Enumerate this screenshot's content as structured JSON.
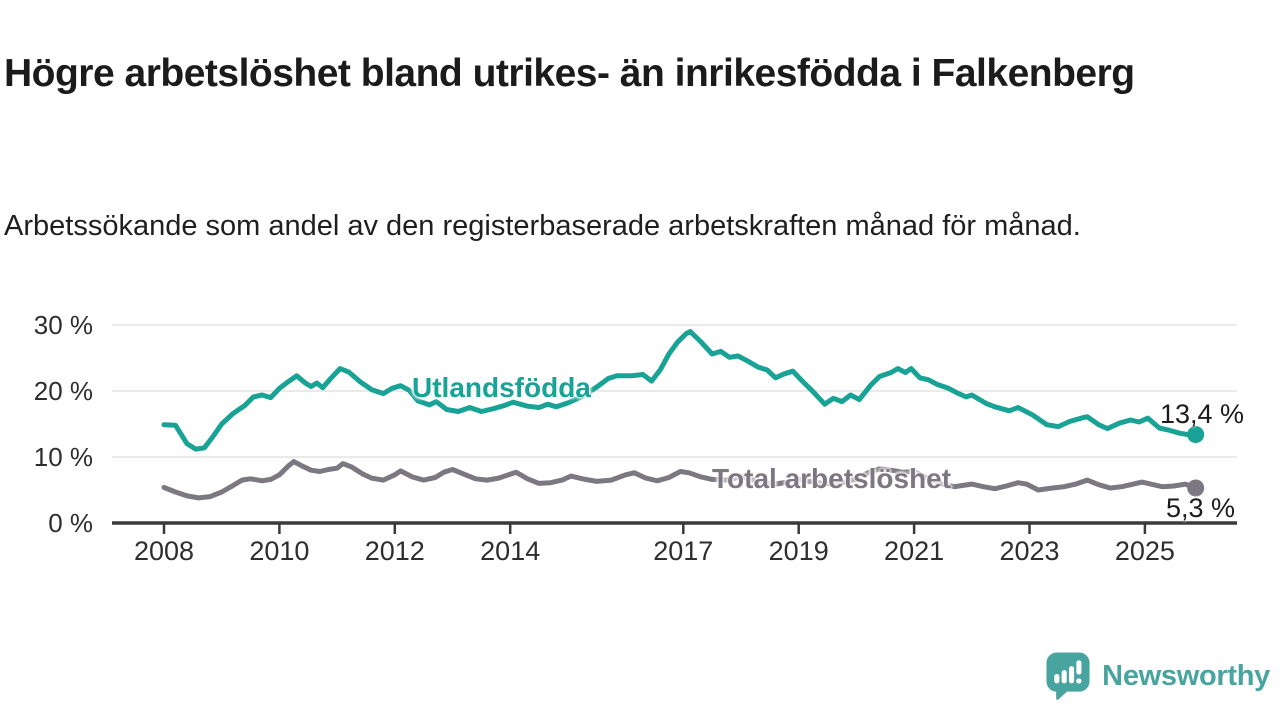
{
  "title": "Högre arbetslöshet bland utrikes- än inrikesfödda i Falkenberg",
  "subtitle": "Arbetssökande som andel av den registerbaserade arbetskraften månad för månad.",
  "branding": {
    "name": "Newsworthy",
    "logo_icon": "speech-bubble-bar-chart-icon"
  },
  "colors": {
    "foreign_series": "#18A396",
    "total_series": "#7B7882",
    "brand_teal": "#47A49E",
    "grid": "#E3E3E3",
    "axis": "#3A3A3A",
    "tick_text": "#2E2E2E",
    "value_text": "#1C1C1C"
  },
  "chart_data": {
    "type": "line",
    "title": "Högre arbetslöshet bland utrikes- än inrikesfödda i Falkenberg",
    "subtitle": "Arbetssökande som andel av den registerbaserade arbetskraften månad för månad.",
    "unit": "%",
    "grid": true,
    "legend_position": "inline-labels-on-lines",
    "x_axis": {
      "ticks": [
        2008,
        2010,
        2012,
        2014,
        2017,
        2019,
        2021,
        2023,
        2025
      ],
      "tick_labels": [
        "2008",
        "2010",
        "2012",
        "2014",
        "2017",
        "2019",
        "2021",
        "2023",
        "2025"
      ],
      "range": [
        2007.1,
        2026.6
      ]
    },
    "y_axis": {
      "ticks": [
        0,
        10,
        20,
        30
      ],
      "tick_labels": [
        "0 %",
        "10 %",
        "20 %",
        "30 %"
      ],
      "range": [
        0,
        32
      ]
    },
    "series": [
      {
        "name": "Utlandsfödda",
        "color": "#18A396",
        "end_label": "13,4 %",
        "end_value": 13.4,
        "points": [
          [
            2008.0,
            14.9
          ],
          [
            2008.2,
            14.8
          ],
          [
            2008.4,
            12.0
          ],
          [
            2008.55,
            11.2
          ],
          [
            2008.7,
            11.4
          ],
          [
            2008.85,
            13.1
          ],
          [
            2009.0,
            15.0
          ],
          [
            2009.2,
            16.6
          ],
          [
            2009.4,
            17.8
          ],
          [
            2009.55,
            19.1
          ],
          [
            2009.7,
            19.4
          ],
          [
            2009.85,
            19.0
          ],
          [
            2010.0,
            20.4
          ],
          [
            2010.15,
            21.4
          ],
          [
            2010.3,
            22.3
          ],
          [
            2010.45,
            21.2
          ],
          [
            2010.55,
            20.7
          ],
          [
            2010.65,
            21.2
          ],
          [
            2010.75,
            20.5
          ],
          [
            2010.9,
            22.0
          ],
          [
            2011.05,
            23.4
          ],
          [
            2011.2,
            22.9
          ],
          [
            2011.4,
            21.4
          ],
          [
            2011.6,
            20.2
          ],
          [
            2011.8,
            19.6
          ],
          [
            2011.95,
            20.4
          ],
          [
            2012.1,
            20.8
          ],
          [
            2012.25,
            20.1
          ],
          [
            2012.4,
            18.5
          ],
          [
            2012.6,
            17.9
          ],
          [
            2012.72,
            18.4
          ],
          [
            2012.9,
            17.2
          ],
          [
            2013.1,
            16.9
          ],
          [
            2013.3,
            17.5
          ],
          [
            2013.5,
            16.9
          ],
          [
            2013.7,
            17.3
          ],
          [
            2013.9,
            17.8
          ],
          [
            2014.05,
            18.3
          ],
          [
            2014.3,
            17.7
          ],
          [
            2014.5,
            17.5
          ],
          [
            2014.65,
            18.0
          ],
          [
            2014.8,
            17.6
          ],
          [
            2015.0,
            18.2
          ],
          [
            2015.25,
            19.2
          ],
          [
            2015.5,
            20.6
          ],
          [
            2015.7,
            21.9
          ],
          [
            2015.85,
            22.3
          ],
          [
            2016.1,
            22.3
          ],
          [
            2016.3,
            22.5
          ],
          [
            2016.45,
            21.5
          ],
          [
            2016.6,
            23.2
          ],
          [
            2016.75,
            25.6
          ],
          [
            2016.9,
            27.4
          ],
          [
            2017.05,
            28.7
          ],
          [
            2017.12,
            29.0
          ],
          [
            2017.3,
            27.5
          ],
          [
            2017.5,
            25.6
          ],
          [
            2017.65,
            26.0
          ],
          [
            2017.8,
            25.1
          ],
          [
            2017.95,
            25.3
          ],
          [
            2018.1,
            24.6
          ],
          [
            2018.3,
            23.6
          ],
          [
            2018.45,
            23.2
          ],
          [
            2018.6,
            22.0
          ],
          [
            2018.75,
            22.6
          ],
          [
            2018.9,
            23.0
          ],
          [
            2019.05,
            21.6
          ],
          [
            2019.25,
            19.9
          ],
          [
            2019.45,
            18.0
          ],
          [
            2019.6,
            18.9
          ],
          [
            2019.75,
            18.4
          ],
          [
            2019.9,
            19.4
          ],
          [
            2020.05,
            18.7
          ],
          [
            2020.25,
            20.9
          ],
          [
            2020.4,
            22.2
          ],
          [
            2020.6,
            22.8
          ],
          [
            2020.72,
            23.4
          ],
          [
            2020.85,
            22.8
          ],
          [
            2020.95,
            23.4
          ],
          [
            2021.1,
            22.0
          ],
          [
            2021.25,
            21.7
          ],
          [
            2021.4,
            21.0
          ],
          [
            2021.6,
            20.4
          ],
          [
            2021.75,
            19.7
          ],
          [
            2021.9,
            19.1
          ],
          [
            2022.0,
            19.4
          ],
          [
            2022.25,
            18.1
          ],
          [
            2022.4,
            17.6
          ],
          [
            2022.65,
            17.0
          ],
          [
            2022.8,
            17.5
          ],
          [
            2023.05,
            16.4
          ],
          [
            2023.3,
            14.9
          ],
          [
            2023.5,
            14.6
          ],
          [
            2023.7,
            15.4
          ],
          [
            2023.9,
            15.9
          ],
          [
            2024.0,
            16.1
          ],
          [
            2024.2,
            14.9
          ],
          [
            2024.35,
            14.3
          ],
          [
            2024.55,
            15.1
          ],
          [
            2024.75,
            15.6
          ],
          [
            2024.9,
            15.3
          ],
          [
            2025.05,
            15.9
          ],
          [
            2025.25,
            14.4
          ],
          [
            2025.4,
            14.1
          ],
          [
            2025.6,
            13.6
          ],
          [
            2025.75,
            13.4
          ],
          [
            2025.88,
            13.4
          ]
        ]
      },
      {
        "name": "Total arbetslöshet",
        "color": "#7B7882",
        "end_label": "5,3 %",
        "end_value": 5.3,
        "points": [
          [
            2008.0,
            5.4
          ],
          [
            2008.2,
            4.7
          ],
          [
            2008.4,
            4.1
          ],
          [
            2008.6,
            3.8
          ],
          [
            2008.8,
            4.0
          ],
          [
            2009.0,
            4.7
          ],
          [
            2009.2,
            5.7
          ],
          [
            2009.35,
            6.5
          ],
          [
            2009.5,
            6.7
          ],
          [
            2009.7,
            6.4
          ],
          [
            2009.85,
            6.6
          ],
          [
            2010.0,
            7.3
          ],
          [
            2010.15,
            8.6
          ],
          [
            2010.25,
            9.3
          ],
          [
            2010.4,
            8.6
          ],
          [
            2010.55,
            8.0
          ],
          [
            2010.7,
            7.8
          ],
          [
            2010.85,
            8.1
          ],
          [
            2011.0,
            8.3
          ],
          [
            2011.1,
            9.0
          ],
          [
            2011.25,
            8.5
          ],
          [
            2011.45,
            7.4
          ],
          [
            2011.6,
            6.8
          ],
          [
            2011.8,
            6.5
          ],
          [
            2012.0,
            7.3
          ],
          [
            2012.1,
            7.9
          ],
          [
            2012.3,
            7.0
          ],
          [
            2012.5,
            6.5
          ],
          [
            2012.7,
            6.9
          ],
          [
            2012.85,
            7.7
          ],
          [
            2013.0,
            8.1
          ],
          [
            2013.2,
            7.4
          ],
          [
            2013.4,
            6.7
          ],
          [
            2013.6,
            6.5
          ],
          [
            2013.8,
            6.8
          ],
          [
            2014.0,
            7.4
          ],
          [
            2014.1,
            7.7
          ],
          [
            2014.3,
            6.7
          ],
          [
            2014.5,
            6.0
          ],
          [
            2014.7,
            6.1
          ],
          [
            2014.9,
            6.5
          ],
          [
            2015.05,
            7.1
          ],
          [
            2015.3,
            6.6
          ],
          [
            2015.5,
            6.3
          ],
          [
            2015.75,
            6.5
          ],
          [
            2016.0,
            7.3
          ],
          [
            2016.15,
            7.6
          ],
          [
            2016.35,
            6.8
          ],
          [
            2016.55,
            6.4
          ],
          [
            2016.75,
            6.9
          ],
          [
            2016.95,
            7.8
          ],
          [
            2017.1,
            7.6
          ],
          [
            2017.3,
            7.0
          ],
          [
            2017.5,
            6.6
          ],
          [
            2017.75,
            6.5
          ],
          [
            2018.0,
            7.0
          ],
          [
            2018.2,
            6.6
          ],
          [
            2018.4,
            6.1
          ],
          [
            2018.6,
            5.9
          ],
          [
            2018.8,
            6.2
          ],
          [
            2019.0,
            6.6
          ],
          [
            2019.2,
            6.3
          ],
          [
            2019.4,
            6.0
          ],
          [
            2019.6,
            5.9
          ],
          [
            2019.8,
            6.2
          ],
          [
            2020.0,
            6.7
          ],
          [
            2020.2,
            7.6
          ],
          [
            2020.4,
            8.2
          ],
          [
            2020.6,
            8.0
          ],
          [
            2020.8,
            7.7
          ],
          [
            2021.0,
            7.8
          ],
          [
            2021.2,
            6.9
          ],
          [
            2021.4,
            6.1
          ],
          [
            2021.55,
            5.8
          ],
          [
            2021.7,
            5.5
          ],
          [
            2021.85,
            5.7
          ],
          [
            2022.0,
            5.9
          ],
          [
            2022.2,
            5.5
          ],
          [
            2022.4,
            5.2
          ],
          [
            2022.6,
            5.6
          ],
          [
            2022.8,
            6.1
          ],
          [
            2022.95,
            5.9
          ],
          [
            2023.15,
            5.0
          ],
          [
            2023.4,
            5.3
          ],
          [
            2023.6,
            5.5
          ],
          [
            2023.8,
            5.9
          ],
          [
            2024.0,
            6.5
          ],
          [
            2024.2,
            5.8
          ],
          [
            2024.4,
            5.3
          ],
          [
            2024.6,
            5.5
          ],
          [
            2024.8,
            5.9
          ],
          [
            2024.95,
            6.2
          ],
          [
            2025.1,
            5.9
          ],
          [
            2025.3,
            5.5
          ],
          [
            2025.5,
            5.6
          ],
          [
            2025.7,
            5.9
          ],
          [
            2025.88,
            5.3
          ]
        ]
      }
    ]
  }
}
